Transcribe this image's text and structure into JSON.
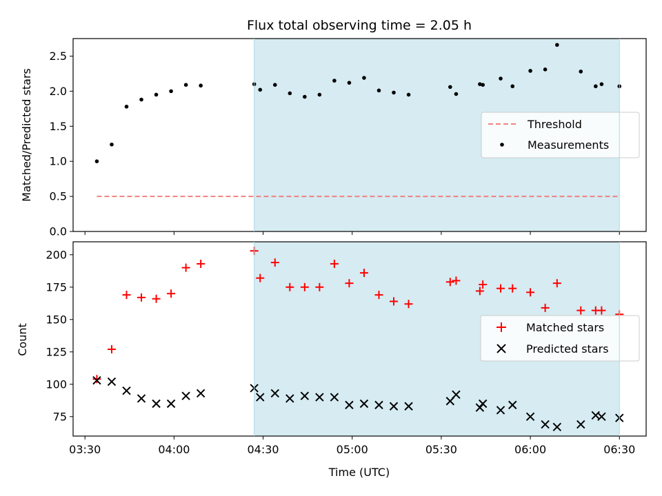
{
  "chart_data": [
    {
      "type": "scatter",
      "title": "Flux total observing time = 2.05 h",
      "xlabel": "",
      "ylabel": "Matched/Predicted stars",
      "ylim": [
        0,
        2.75
      ],
      "xlim": [
        "03:26",
        "06:39"
      ],
      "yticks": [
        "0.0",
        "0.5",
        "1.0",
        "1.5",
        "2.0",
        "2.5"
      ],
      "shaded_span": [
        "04:27",
        "06:30"
      ],
      "grid": false,
      "legend": "center-right",
      "legend_entries": [
        "Threshold",
        "Measurements"
      ],
      "series": [
        {
          "name": "Threshold",
          "style": "dashed-line",
          "color": "#f08080",
          "x": [
            "03:34",
            "06:30"
          ],
          "values": [
            0.5,
            0.5
          ]
        },
        {
          "name": "Measurements",
          "style": "dot",
          "color": "#000000",
          "x": [
            "03:34",
            "03:39",
            "03:44",
            "03:49",
            "03:54",
            "03:59",
            "04:04",
            "04:09",
            "04:27",
            "04:29",
            "04:34",
            "04:39",
            "04:44",
            "04:49",
            "04:54",
            "04:59",
            "05:04",
            "05:09",
            "05:14",
            "05:19",
            "05:33",
            "05:35",
            "05:43",
            "05:44",
            "05:50",
            "05:54",
            "06:00",
            "06:05",
            "06:09",
            "06:17",
            "06:22",
            "06:24",
            "06:30"
          ],
          "values": [
            1.0,
            1.24,
            1.78,
            1.88,
            1.95,
            2.0,
            2.09,
            2.08,
            2.1,
            2.02,
            2.09,
            1.97,
            1.92,
            1.95,
            2.15,
            2.12,
            2.19,
            2.01,
            1.98,
            1.95,
            2.06,
            1.96,
            2.1,
            2.09,
            2.18,
            2.07,
            2.29,
            2.31,
            2.66,
            2.28,
            2.07,
            2.1,
            2.07
          ]
        }
      ]
    },
    {
      "type": "scatter",
      "xlabel": "Time (UTC)",
      "ylabel": "Count",
      "ylim": [
        60,
        210
      ],
      "xlim": [
        "03:26",
        "06:39"
      ],
      "yticks": [
        "75",
        "100",
        "125",
        "150",
        "175",
        "200"
      ],
      "xticks": [
        "03:30",
        "04:00",
        "04:30",
        "05:00",
        "05:30",
        "06:00",
        "06:30"
      ],
      "shaded_span": [
        "04:27",
        "06:30"
      ],
      "grid": false,
      "legend": "center-right",
      "legend_entries": [
        "Matched stars",
        "Predicted stars"
      ],
      "series": [
        {
          "name": "Matched stars",
          "marker": "plus",
          "color": "#ff0000",
          "x": [
            "03:34",
            "03:39",
            "03:44",
            "03:49",
            "03:54",
            "03:59",
            "04:04",
            "04:09",
            "04:27",
            "04:29",
            "04:34",
            "04:39",
            "04:44",
            "04:49",
            "04:54",
            "04:59",
            "05:04",
            "05:09",
            "05:14",
            "05:19",
            "05:33",
            "05:35",
            "05:43",
            "05:44",
            "05:50",
            "05:54",
            "06:00",
            "06:05",
            "06:09",
            "06:17",
            "06:22",
            "06:24",
            "06:30"
          ],
          "values": [
            104,
            127,
            169,
            167,
            166,
            170,
            190,
            193,
            203,
            182,
            194,
            175,
            175,
            175,
            193,
            178,
            186,
            169,
            164,
            162,
            179,
            180,
            172,
            177,
            174,
            174,
            171,
            159,
            178,
            157,
            157,
            157,
            154
          ]
        },
        {
          "name": "Predicted stars",
          "marker": "x",
          "color": "#000000",
          "x": [
            "03:34",
            "03:39",
            "03:44",
            "03:49",
            "03:54",
            "03:59",
            "04:04",
            "04:09",
            "04:27",
            "04:29",
            "04:34",
            "04:39",
            "04:44",
            "04:49",
            "04:54",
            "04:59",
            "05:04",
            "05:09",
            "05:14",
            "05:19",
            "05:33",
            "05:35",
            "05:43",
            "05:44",
            "05:50",
            "05:54",
            "06:00",
            "06:05",
            "06:09",
            "06:17",
            "06:22",
            "06:24",
            "06:30"
          ],
          "values": [
            103,
            102,
            95,
            89,
            85,
            85,
            91,
            93,
            97,
            90,
            93,
            89,
            91,
            90,
            90,
            84,
            85,
            84,
            83,
            83,
            87,
            92,
            82,
            85,
            80,
            84,
            75,
            69,
            67,
            69,
            76,
            75,
            74
          ]
        }
      ]
    }
  ],
  "colors": {
    "shade": "#add8e6",
    "threshold": "#f08080",
    "matched": "#ff0000",
    "predicted": "#000000",
    "measurement": "#000000"
  }
}
